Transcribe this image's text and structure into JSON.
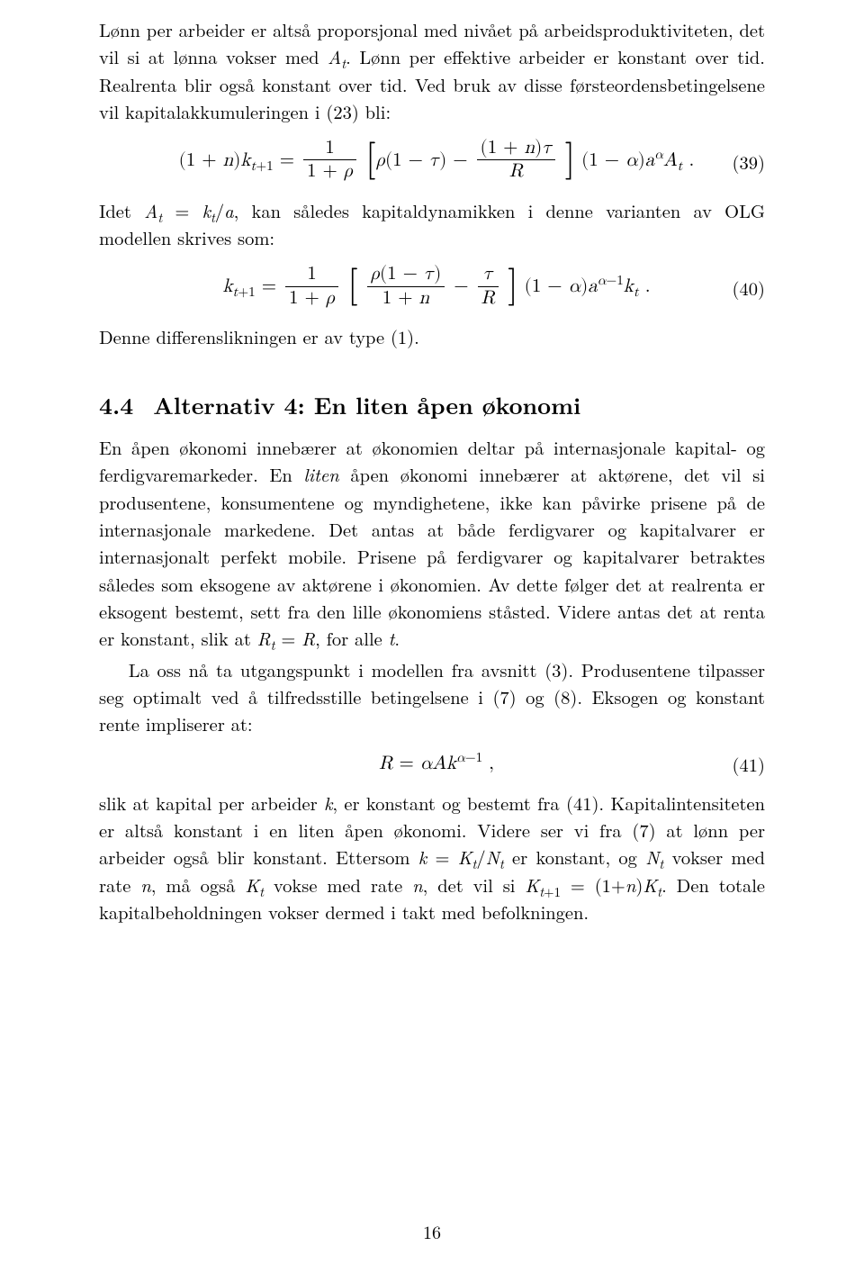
{
  "doc": {
    "font_family": "Computer Modern / Latin Modern",
    "body_fontsize_pt": 12,
    "heading_fontsize_pt": 14,
    "text_color": "#000000",
    "background_color": "#ffffff",
    "page_number": "16",
    "eq39_num": "(39)",
    "eq40_num": "(40)",
    "eq41_num": "(41)"
  },
  "para1": "Lønn per arbeider er altså proporsjonal med nivået på arbeidsproduktiviteten, det vil si at lønna vokser med Aₜ. Lønn per effektive arbeider er konstant over tid. Realrenta blir også konstant over tid. Ved bruk av disse førsteordensbetingelsene vil kapitalakkumuleringen i (23) bli:",
  "eq39": {
    "tex": "(1+n)k_{t+1} = \\frac{1}{1+\\rho}\\left[\\rho(1-\\tau) - \\frac{(1+n)\\tau}{R}\\right](1-\\alpha)a^{\\alpha}A_t .",
    "plain": "(1 + n)k_{t+1} = (1/(1+ρ)) [ ρ(1 − τ) − (1+n)τ / R ] (1 − α) a^α A_t ."
  },
  "para2": "Idet Aₜ = kₜ/a, kan således kapitaldynamikken i denne varianten av OLG modellen skrives som:",
  "eq40": {
    "tex": "k_{t+1} = \\frac{1}{1+\\rho}\\left[\\frac{\\rho(1-\\tau)}{1+n} - \\frac{\\tau}{R}\\right](1-\\alpha)a^{\\alpha-1}k_t .",
    "plain": "k_{t+1} = (1/(1+ρ)) [ ρ(1−τ)/(1+n) − τ/R ] (1 − α) a^{α−1} k_t ."
  },
  "para3": "Denne differenslikningen er av type (1).",
  "heading": {
    "num": "4.4",
    "title": "Alternativ 4: En liten åpen økonomi"
  },
  "para4": "En åpen økonomi innebærer at økonomien deltar på internasjonale kapital- og ferdigvaremarkeder. En liten åpen økonomi innebærer at aktørene, det vil si produsentene, konsumentene og myndighetene, ikke kan påvirke prisene på de internasjonale markedene. Det antas at både ferdigvarer og kapitalvarer er internasjonalt perfekt mobile. Prisene på ferdigvarer og kapitalvarer betraktes således som eksogene av aktørene i økonomien. Av dette følger det at realrenta er eksogent bestemt, sett fra den lille økonomiens ståsted. Videre antas det at renta er konstant, slik at Rₜ = R, for alle t.",
  "para5": "La oss nå ta utgangspunkt i modellen fra avsnitt (3). Produsentene tilpasser seg optimalt ved å tilfredsstille betingelsene i (7) og (8). Eksogen og konstant rente impliserer at:",
  "eq41": {
    "tex": "R = \\alpha A k^{\\alpha-1} ,",
    "plain": "R = α A k^{α−1} ,"
  },
  "para6": "slik at kapital per arbeider k, er konstant og bestemt fra (41). Kapitalintensiteten er altså konstant i en liten åpen økonomi. Videre ser vi fra (7) at lønn per arbeider også blir konstant. Ettersom k = Kₜ/Nₜ er konstant, og Nₜ vokser med rate n, må også Kₜ vokse med rate n, det vil si K_{t+1} = (1+n)Kₜ. Den totale kapitalbeholdningen vokser dermed i takt med befolkningen."
}
